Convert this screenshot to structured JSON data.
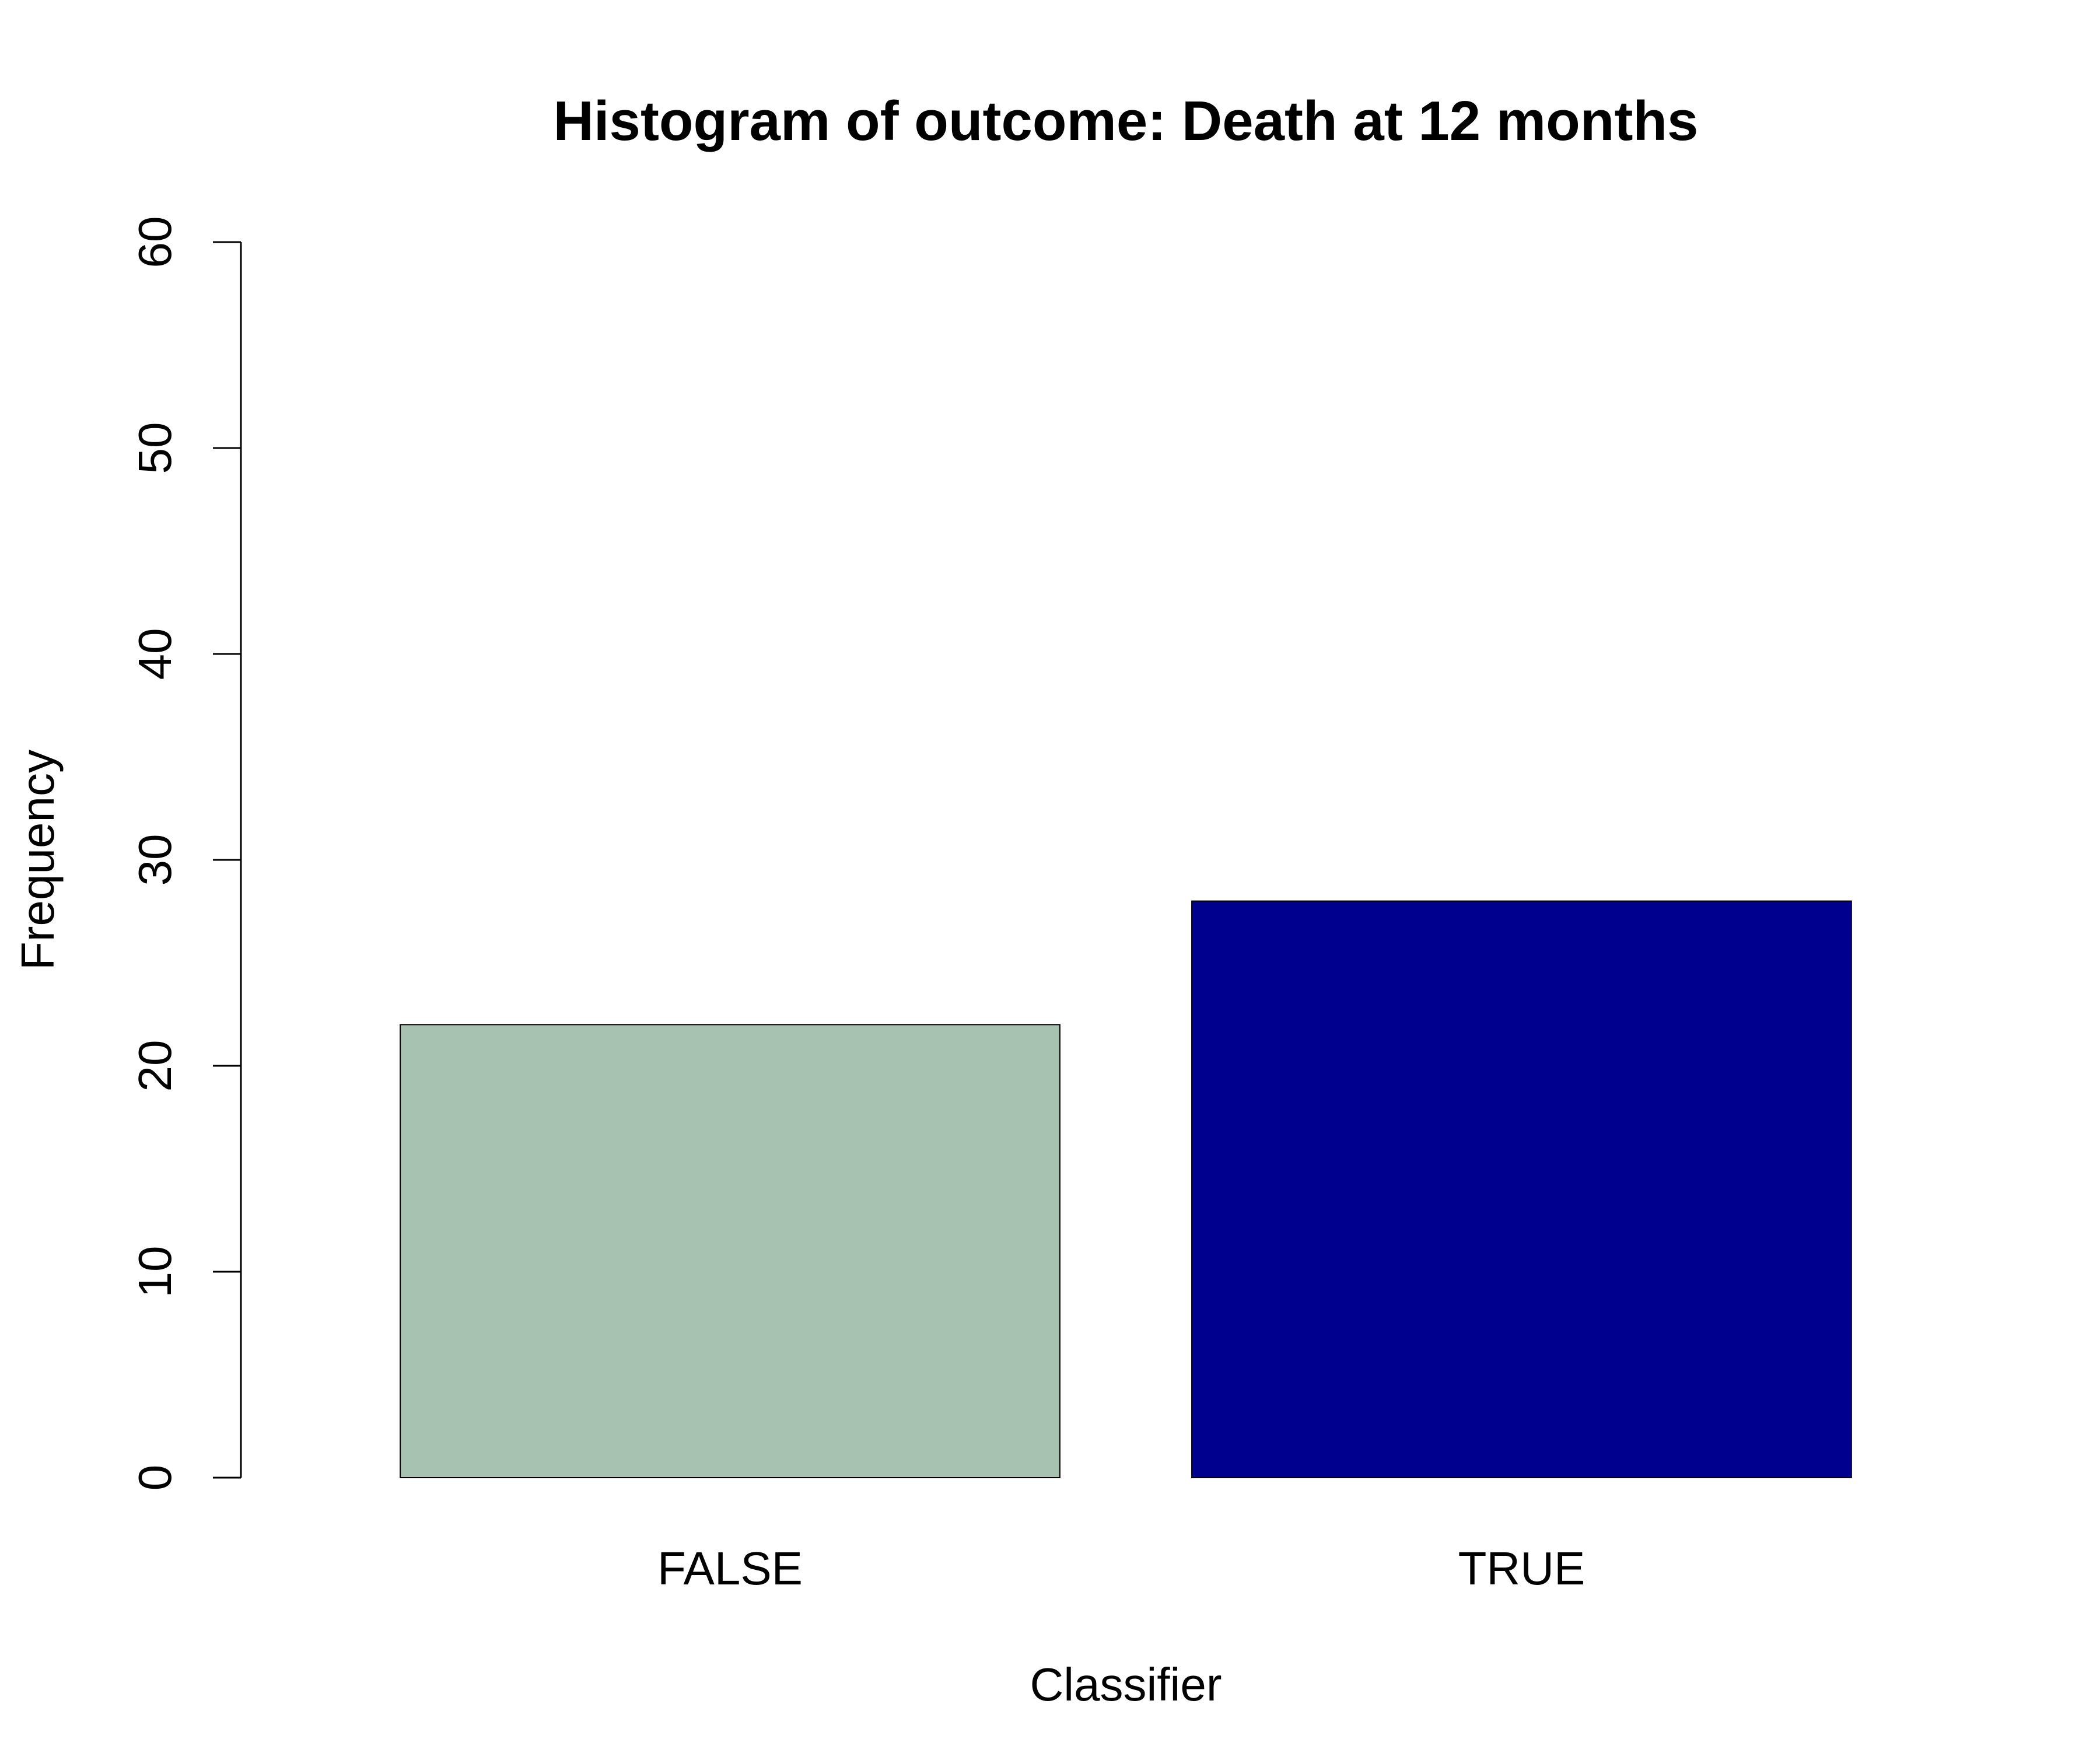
{
  "chart_data": {
    "type": "bar",
    "title": "Histogram of outcome: Death at 12 months",
    "xlabel": "Classifier",
    "ylabel": "Frequency",
    "categories": [
      "FALSE",
      "TRUE"
    ],
    "values": [
      22,
      28
    ],
    "bar_colors": [
      "#A7C2B0",
      "#00008F"
    ],
    "bar_border_color": "#000000",
    "ylim": [
      0,
      60
    ],
    "yticks": [
      0,
      10,
      20,
      30,
      40,
      50,
      60
    ],
    "ytick_labels": [
      "0",
      "10",
      "20",
      "30",
      "40",
      "50",
      "60"
    ],
    "grid": false,
    "legend": "none"
  }
}
